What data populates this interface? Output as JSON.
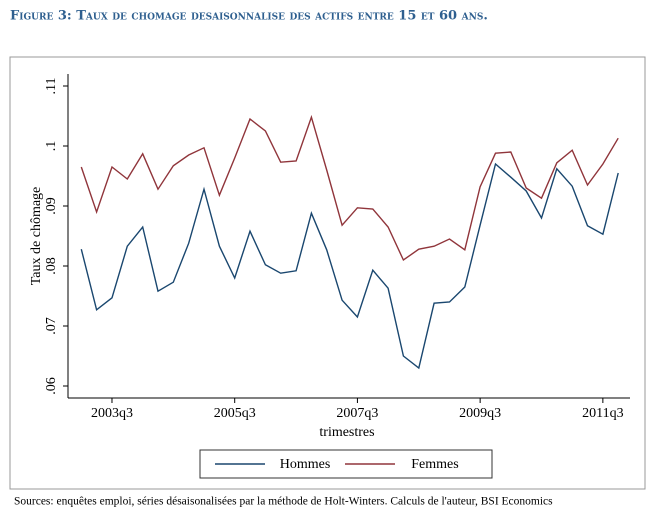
{
  "chart_data": {
    "type": "line",
    "title": "Figure 3: Taux de chomage desaisonnalise des actifs entre 15 et 60 ans.",
    "y_label": "Taux de chômage",
    "x_label": "trimestres",
    "source": "Sources: enquêtes emploi, séries désaisonalisées par la méthode de Holt-Winters. Calculs de l'auteur, BSI Economics",
    "categories": [
      null,
      null,
      "2003q3",
      null,
      null,
      null,
      null,
      null,
      null,
      null,
      "2005q3",
      null,
      null,
      null,
      null,
      null,
      null,
      null,
      "2007q3",
      null,
      null,
      null,
      null,
      null,
      null,
      null,
      "2009q3",
      null,
      null,
      null,
      null,
      null,
      null,
      null,
      "2011q3",
      null
    ],
    "series": [
      {
        "name": "Hommes",
        "color": "#1a476f",
        "values": [
          0.0828,
          0.0727,
          0.0747,
          0.0833,
          0.0865,
          0.0758,
          0.0773,
          0.0838,
          0.0928,
          0.0833,
          0.078,
          0.0858,
          0.0802,
          0.0788,
          0.0792,
          0.0888,
          0.0827,
          0.0743,
          0.0715,
          0.0793,
          0.0763,
          0.065,
          0.063,
          0.0738,
          0.074,
          0.0765,
          0.0868,
          0.097,
          0.0948,
          0.0925,
          0.088,
          0.0962,
          0.0933,
          0.0867,
          0.0853,
          0.0955
        ]
      },
      {
        "name": "Femmes",
        "color": "#90353b",
        "values": [
          0.0965,
          0.089,
          0.0965,
          0.0945,
          0.0987,
          0.0928,
          0.0967,
          0.0985,
          0.0997,
          0.0918,
          0.098,
          0.1045,
          0.1025,
          0.0973,
          0.0975,
          0.1048,
          0.096,
          0.0868,
          0.0897,
          0.0895,
          0.0865,
          0.081,
          0.0828,
          0.0833,
          0.0845,
          0.0827,
          0.0932,
          0.0988,
          0.099,
          0.093,
          0.0913,
          0.0972,
          0.0993,
          0.0935,
          0.097,
          0.1013
        ]
      }
    ],
    "ylim": [
      0.058,
      0.112
    ],
    "yticks": [
      {
        "value": 0.06,
        "label": ".06"
      },
      {
        "value": 0.07,
        "label": ".07"
      },
      {
        "value": 0.08,
        "label": ".08"
      },
      {
        "value": 0.09,
        "label": ".09"
      },
      {
        "value": 0.1,
        "label": ".1"
      },
      {
        "value": 0.11,
        "label": ".11"
      }
    ],
    "legend": "bottom"
  }
}
